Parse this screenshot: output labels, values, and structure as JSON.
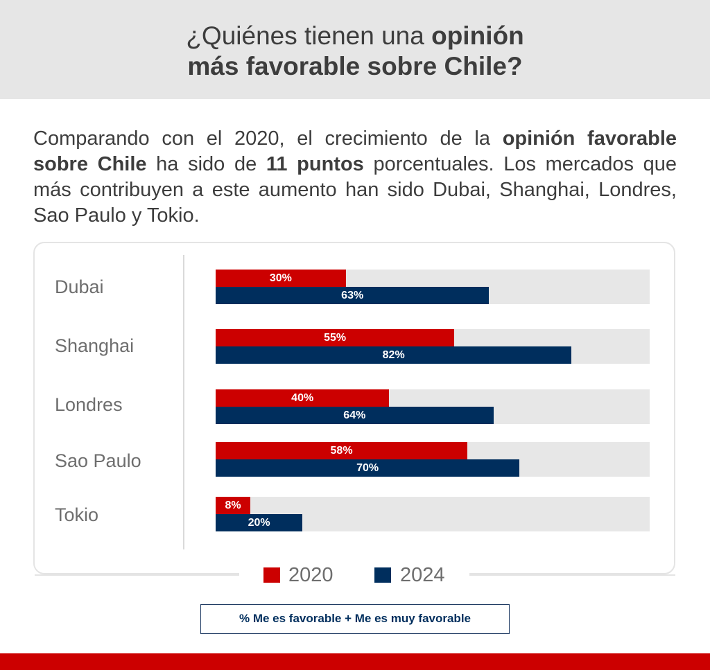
{
  "header": {
    "title_line1_normal": "¿Quiénes tienen una ",
    "title_line1_bold": "opinión",
    "title_line2_bold": "más favorable sobre Chile?"
  },
  "intro": {
    "p1": "Comparando con el 2020, el crecimiento de la ",
    "b1": "opinión favorable sobre Chile",
    "p2": " ha sido de ",
    "b2": "11 puntos",
    "p3": " porcentuales. Los mercados que más contribuyen a este aumento han sido Dubai, Shanghai, Londres, Sao Paulo y Tokio."
  },
  "note": "% Me es favorable + Me es muy favorable",
  "colors": {
    "s2020": "#cc0000",
    "s2024": "#002e5d",
    "track": "#e7e7e7",
    "footer": "#cc0000"
  },
  "chart_data": {
    "type": "bar",
    "orientation": "horizontal",
    "categories": [
      "Dubai",
      "Shanghai",
      "Londres",
      "Sao Paulo",
      "Tokio"
    ],
    "series": [
      {
        "name": "2020",
        "values": [
          30,
          55,
          40,
          58,
          8
        ],
        "labels": [
          "30%",
          "55%",
          "40%",
          "58%",
          "8%"
        ]
      },
      {
        "name": "2024",
        "values": [
          63,
          82,
          64,
          70,
          20
        ],
        "labels": [
          "63%",
          "82%",
          "64%",
          "70%",
          "20%"
        ]
      }
    ],
    "xlim": [
      0,
      100
    ],
    "legend_position": "bottom",
    "grid": false
  }
}
